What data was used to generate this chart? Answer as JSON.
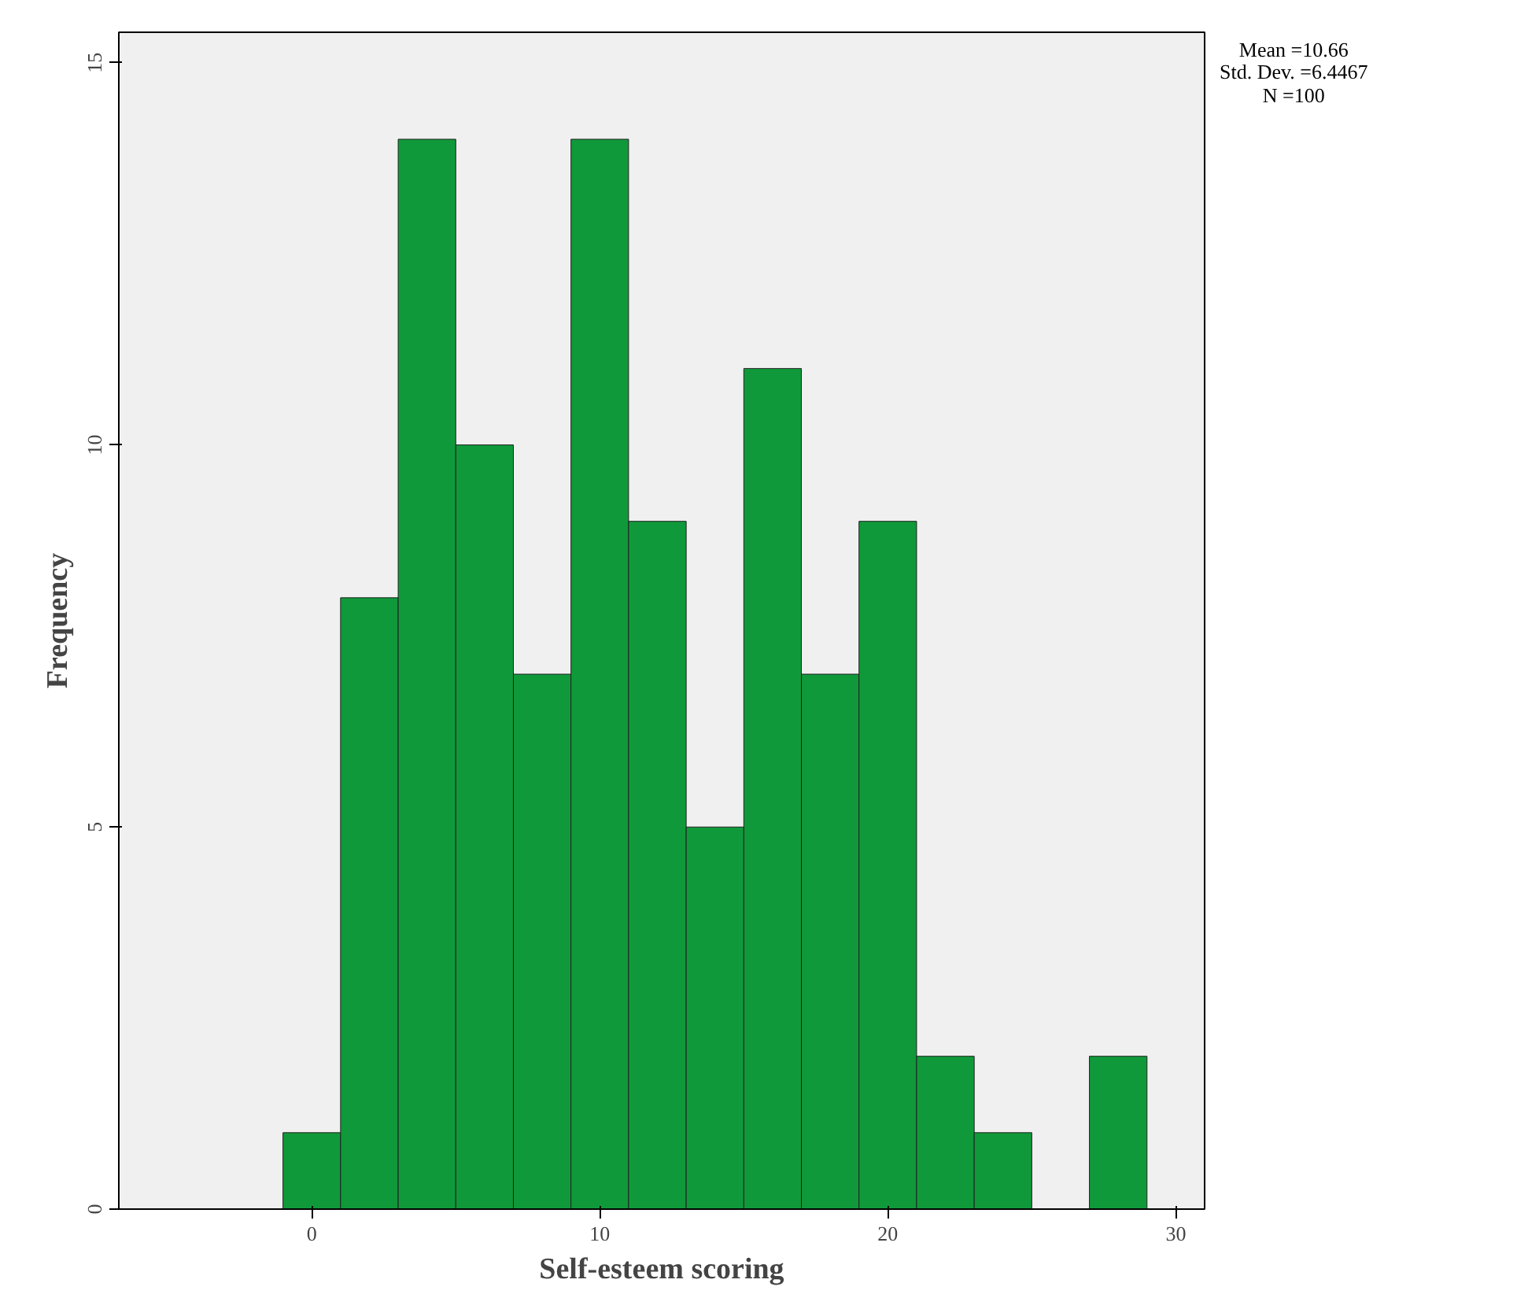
{
  "chart_data": {
    "type": "histogram",
    "xlabel": "Self-esteem scoring",
    "ylabel": "Frequency",
    "bins": [
      -1,
      1,
      3,
      5,
      7,
      9,
      11,
      13,
      15,
      17,
      19,
      21,
      23,
      25,
      27,
      29
    ],
    "values": [
      1,
      8,
      14,
      10,
      7,
      14,
      9,
      5,
      11,
      7,
      9,
      2,
      1,
      0,
      2
    ],
    "color": "#10993a",
    "xlim": [
      -6.7,
      31
    ],
    "xticks": [
      0,
      10,
      20,
      30
    ],
    "ylim": [
      0,
      15.4
    ],
    "yticks": [
      0,
      5,
      10,
      15
    ],
    "grid": false,
    "annotations": [
      "Mean =10.66",
      "Std. Dev. =6.4467",
      "N =100"
    ]
  }
}
